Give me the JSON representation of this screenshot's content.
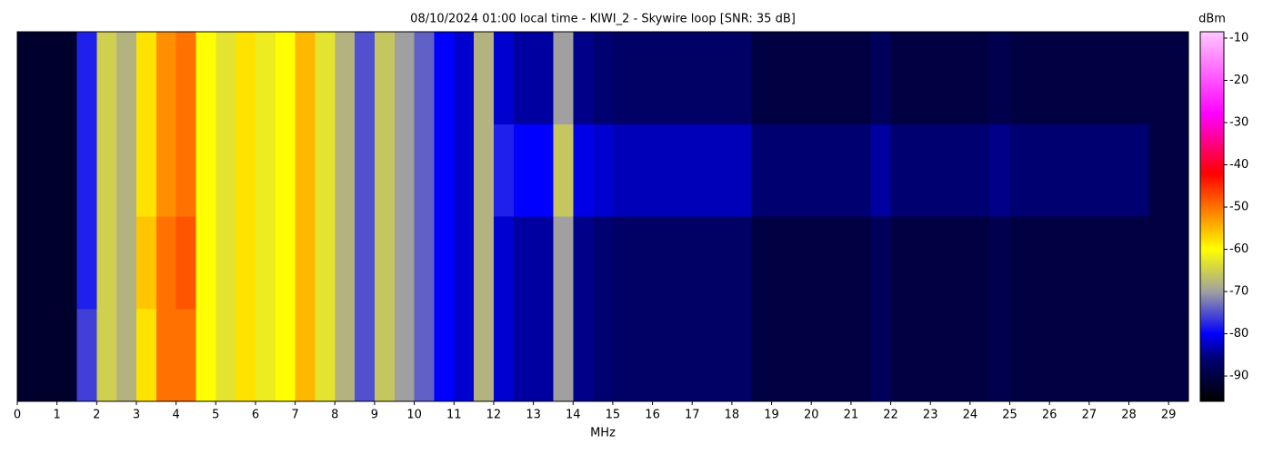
{
  "chart_data": {
    "type": "heatmap",
    "title": "08/10/2024 01:00 local time - KIWI_2 - Skywire loop [SNR: 35 dB]",
    "x_label": "MHz",
    "colorbar_label": "dBm",
    "bins": [
      0,
      0.5,
      1,
      1.5,
      2,
      2.5,
      3,
      3.5,
      4,
      4.5,
      5,
      5.5,
      6,
      6.5,
      7,
      7.5,
      8,
      8.5,
      9,
      9.5,
      10,
      10.5,
      11,
      11.5,
      12,
      12.5,
      13,
      13.5,
      14,
      14.5,
      15,
      15.5,
      16,
      16.5,
      17,
      17.5,
      18,
      18.5,
      19,
      19.5,
      20,
      20.5,
      21,
      21.5,
      22,
      22.5,
      23,
      23.5,
      24,
      24.5,
      25,
      25.5,
      26,
      26.5,
      27,
      27.5,
      28,
      28.5,
      29,
      29.5
    ],
    "values": [
      [
        -92,
        -92,
        -92,
        -78,
        -65,
        -68,
        -58,
        -52,
        -50,
        -60,
        -63,
        -58,
        -62,
        -60,
        -55,
        -63,
        -68,
        -75,
        -66,
        -70,
        -74,
        -80,
        -82,
        -68,
        -82,
        -84,
        -84,
        -70,
        -85,
        -86,
        -87,
        -87,
        -87,
        -87,
        -87,
        -87,
        -87,
        -90,
        -90,
        -90,
        -90,
        -90,
        -90,
        -88,
        -90,
        -90,
        -90,
        -90,
        -90,
        -89,
        -90,
        -90,
        -90,
        -90,
        -90,
        -90,
        -90,
        -90,
        -90
      ],
      [
        -92,
        -92,
        -92,
        -78,
        -65,
        -68,
        -58,
        -52,
        -50,
        -60,
        -63,
        -58,
        -62,
        -60,
        -55,
        -63,
        -68,
        -75,
        -66,
        -70,
        -74,
        -80,
        -82,
        -68,
        -78,
        -80,
        -80,
        -66,
        -81,
        -82,
        -83,
        -83,
        -83,
        -83,
        -83,
        -83,
        -83,
        -86,
        -86,
        -86,
        -86,
        -86,
        -86,
        -84,
        -86,
        -86,
        -86,
        -86,
        -86,
        -85,
        -86,
        -86,
        -86,
        -86,
        -86,
        -86,
        -86,
        -90,
        -90
      ],
      [
        -92,
        -92,
        -92,
        -78,
        -65,
        -68,
        -56,
        -50,
        -48,
        -60,
        -63,
        -58,
        -62,
        -60,
        -55,
        -63,
        -68,
        -75,
        -66,
        -70,
        -74,
        -80,
        -82,
        -68,
        -82,
        -84,
        -84,
        -70,
        -85,
        -86,
        -87,
        -87,
        -87,
        -87,
        -87,
        -87,
        -87,
        -90,
        -90,
        -90,
        -90,
        -90,
        -90,
        -88,
        -90,
        -90,
        -90,
        -90,
        -90,
        -89,
        -90,
        -90,
        -90,
        -90,
        -90,
        -90,
        -90,
        -90,
        -90
      ],
      [
        -92,
        -92,
        -92,
        -76,
        -65,
        -68,
        -58,
        -50,
        -50,
        -60,
        -63,
        -58,
        -62,
        -60,
        -55,
        -63,
        -68,
        -75,
        -66,
        -70,
        -74,
        -80,
        -82,
        -68,
        -82,
        -84,
        -84,
        -70,
        -85,
        -86,
        -87,
        -87,
        -87,
        -87,
        -87,
        -87,
        -87,
        -90,
        -90,
        -90,
        -90,
        -90,
        -90,
        -88,
        -90,
        -90,
        -90,
        -90,
        -90,
        -89,
        -90,
        -90,
        -90,
        -90,
        -90,
        -90,
        -90,
        -90,
        -90
      ]
    ],
    "xlim": [
      0,
      29.5
    ],
    "xticks": [
      0,
      1,
      2,
      3,
      4,
      5,
      6,
      7,
      8,
      9,
      10,
      11,
      12,
      13,
      14,
      15,
      16,
      17,
      18,
      19,
      20,
      21,
      22,
      23,
      24,
      25,
      26,
      27,
      28,
      29
    ],
    "clim": [
      -96,
      -8.5
    ],
    "cticks": [
      -90,
      -80,
      -70,
      -60,
      -50,
      -40,
      -30,
      -20,
      -10
    ],
    "colormap": [
      {
        "value": -96,
        "color": "#000000"
      },
      {
        "value": -86,
        "color": "#000070"
      },
      {
        "value": -80,
        "color": "#0000ff"
      },
      {
        "value": -70,
        "color": "#a0a0a0"
      },
      {
        "value": -60,
        "color": "#ffff00"
      },
      {
        "value": -42,
        "color": "#ff0000"
      },
      {
        "value": -28,
        "color": "#ff00ff"
      },
      {
        "value": -8.5,
        "color": "#ffc8ff"
      }
    ]
  }
}
